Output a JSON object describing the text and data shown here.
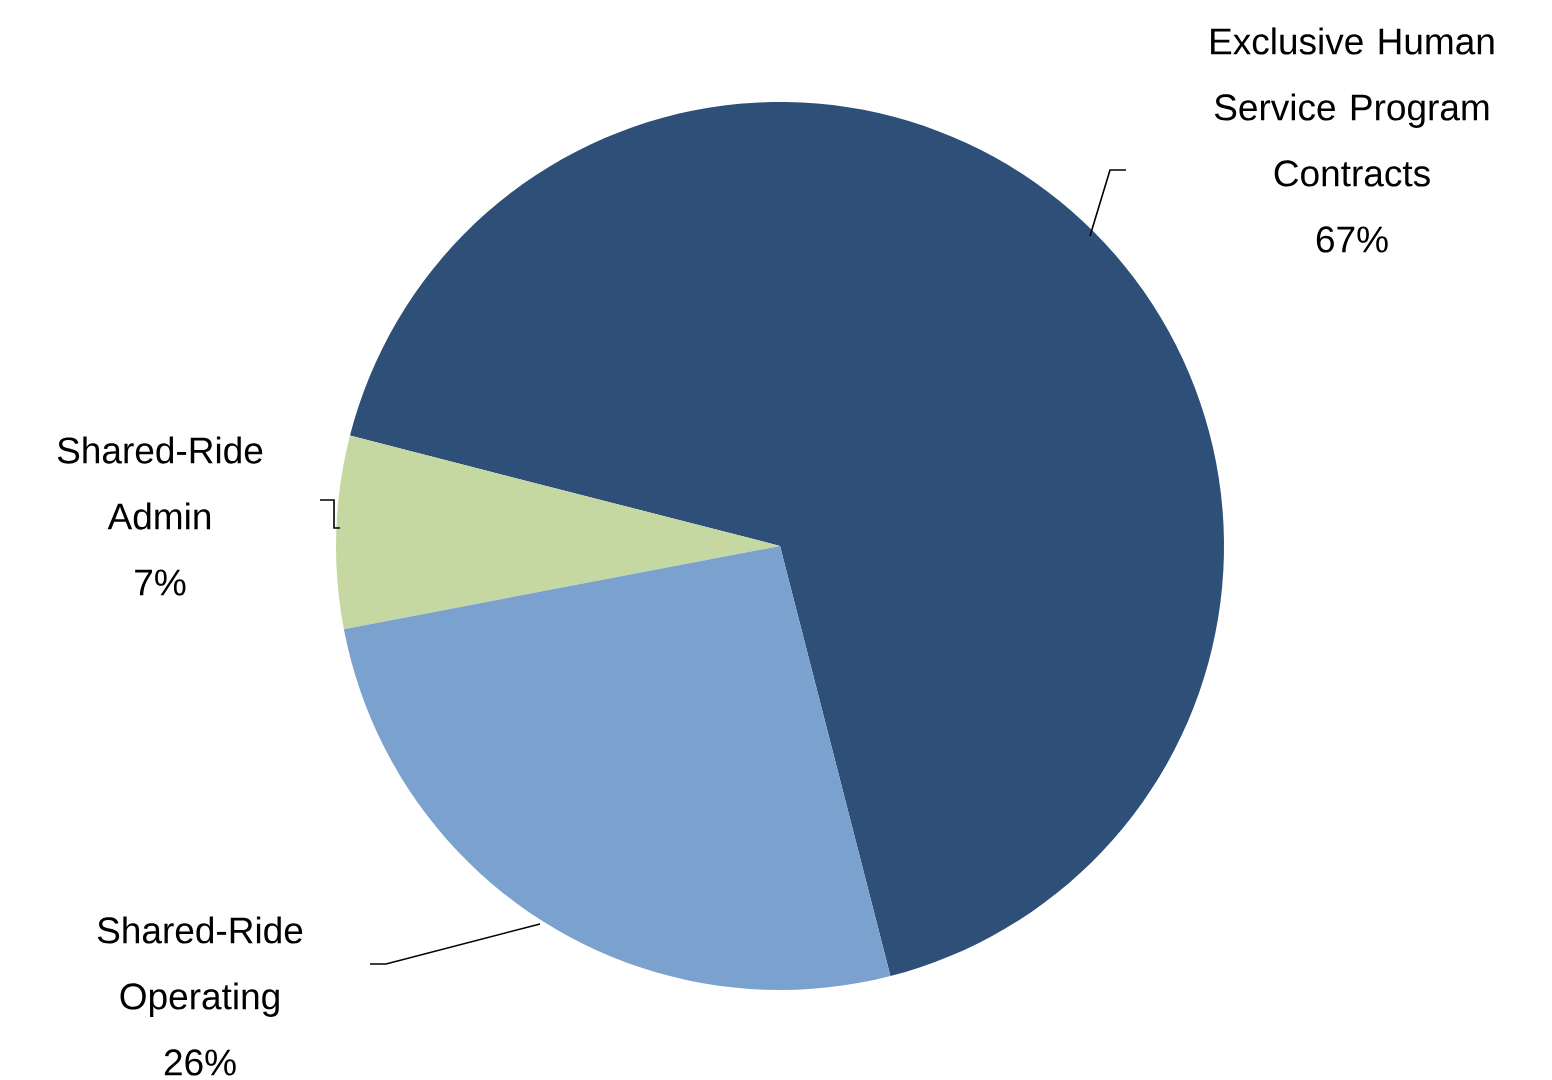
{
  "chart_data": {
    "type": "pie",
    "categories": [
      "Exclusive Human Service Program Contracts",
      "Shared-Ride Admin",
      "Shared-Ride Operating"
    ],
    "values": [
      67,
      7,
      26
    ],
    "colors": [
      "#2e4f77",
      "#c6d8a2",
      "#7ba1cf"
    ],
    "value_labels": [
      "67%",
      "7%",
      "26%"
    ]
  }
}
